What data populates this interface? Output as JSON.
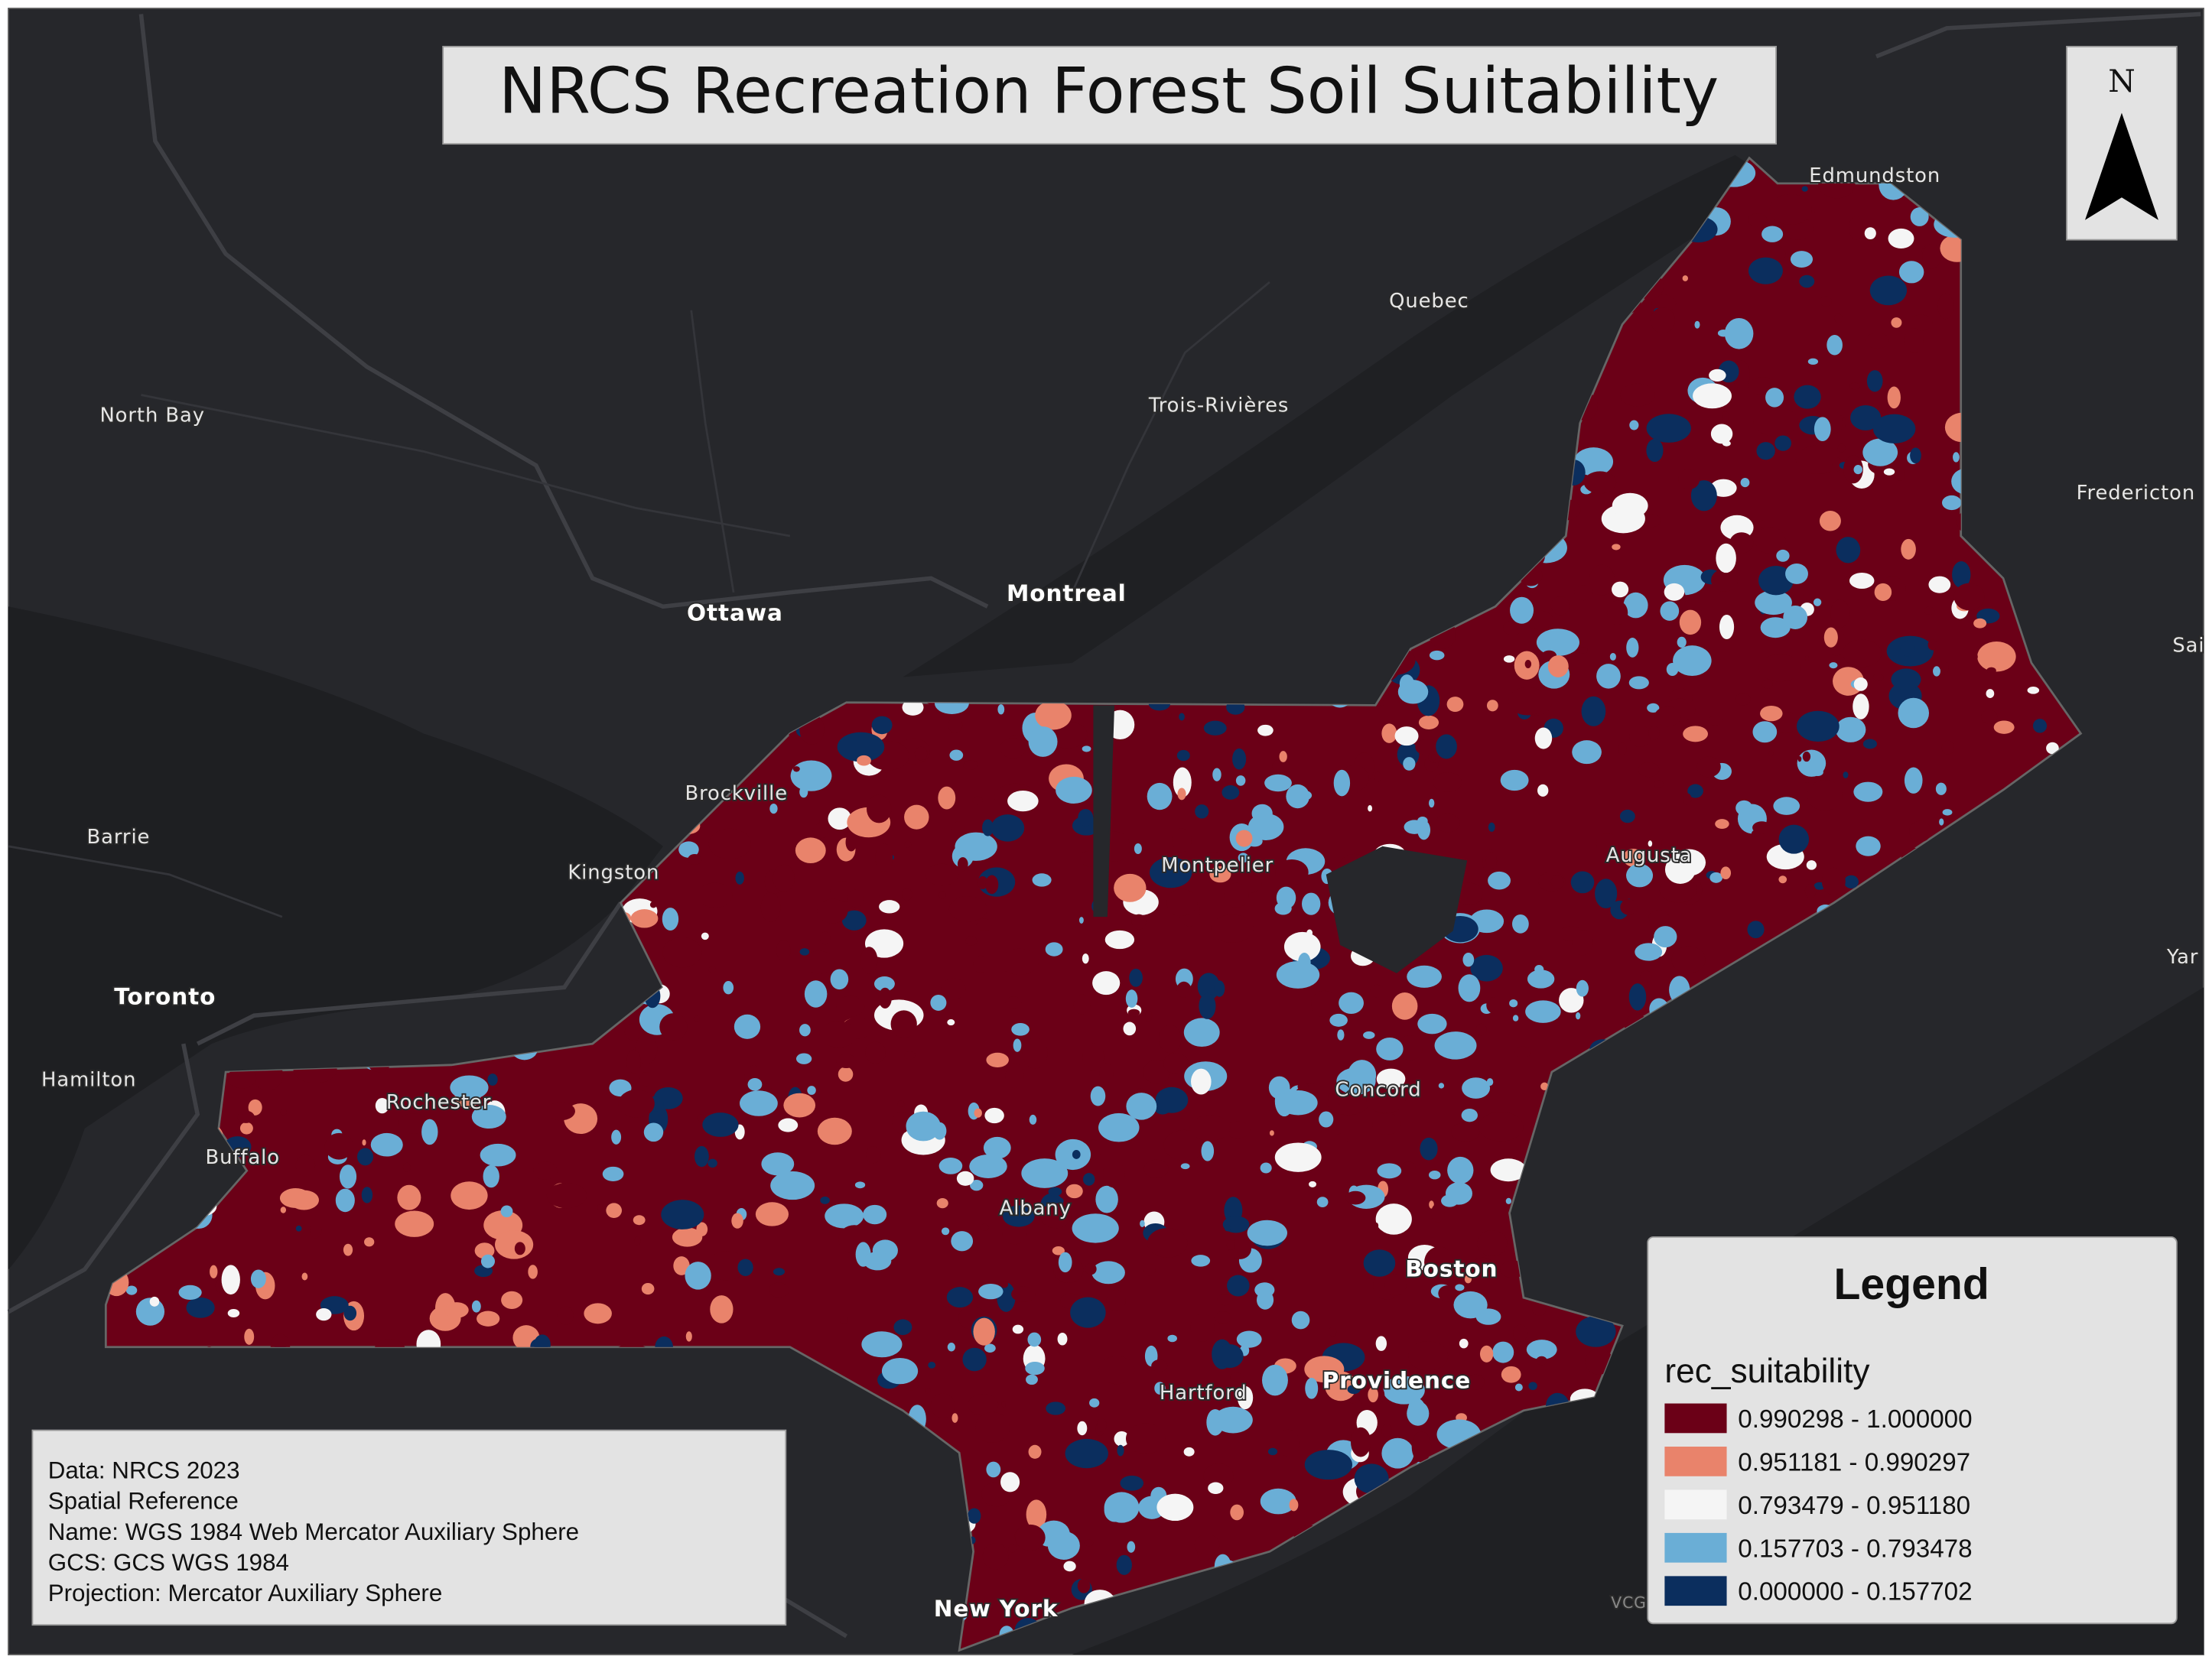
{
  "title": "NRCS Recreation Forest Soil Suitability",
  "north_arrow": "N",
  "places": [
    "Edmundston",
    "Quebec",
    "Trois-Rivières",
    "North Bay",
    "Fredericton",
    "Ottawa",
    "Montreal",
    "Brockville",
    "Barrie",
    "Kingston",
    "Montpelier",
    "Augusta",
    "Toronto",
    "Hamilton",
    "Rochester",
    "Concord",
    "Buffalo",
    "Albany",
    "Boston",
    "Hartford",
    "Providence",
    "New York",
    "Sai",
    "Yar",
    "VCG"
  ],
  "legend": {
    "title": "Legend",
    "field": "rec_suitability",
    "classes": [
      {
        "label": "0.990298 - 1.000000",
        "color": "#6b0017"
      },
      {
        "label": "0.951181 - 0.990297",
        "color": "#e9836b"
      },
      {
        "label": "0.793479 - 0.951180",
        "color": "#f5f5f5"
      },
      {
        "label": "0.157703 - 0.793478",
        "color": "#6aaed6"
      },
      {
        "label": "0.000000 - 0.157702",
        "color": "#0b2e5e"
      }
    ]
  },
  "info": [
    "Data: NRCS 2023",
    "Spatial Reference",
    "Name: WGS 1984 Web Mercator Auxiliary Sphere",
    "GCS: GCS WGS 1984",
    "Projection: Mercator Auxiliary Sphere"
  ]
}
